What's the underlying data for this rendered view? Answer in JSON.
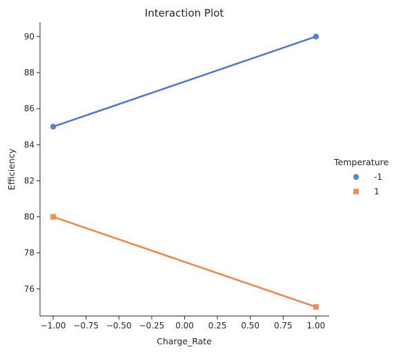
{
  "chart_data": {
    "type": "line",
    "title": "Interaction Plot",
    "xlabel": "Charge_Rate",
    "ylabel": "Efficiency",
    "xlim": [
      -1.1,
      1.1
    ],
    "ylim": [
      74.5,
      90.8
    ],
    "xticks": [
      -1.0,
      -0.75,
      -0.5,
      -0.25,
      0.0,
      0.25,
      0.5,
      0.75,
      1.0
    ],
    "xtick_labels": [
      "−1.00",
      "−0.75",
      "−0.50",
      "−0.25",
      "0.00",
      "0.25",
      "0.50",
      "0.75",
      "1.00"
    ],
    "yticks": [
      76,
      78,
      80,
      82,
      84,
      86,
      88,
      90
    ],
    "ytick_labels": [
      "76",
      "78",
      "80",
      "82",
      "84",
      "86",
      "88",
      "90"
    ],
    "grid": false,
    "legend": {
      "title": "Temperature",
      "placement": "right"
    },
    "series": [
      {
        "name": "-1",
        "marker": "circle",
        "color": "#4878d0",
        "x": [
          -1,
          1
        ],
        "y": [
          85,
          90
        ]
      },
      {
        "name": "1",
        "marker": "square",
        "color": "#ee854a",
        "x": [
          -1,
          1
        ],
        "y": [
          80,
          75
        ]
      }
    ]
  }
}
